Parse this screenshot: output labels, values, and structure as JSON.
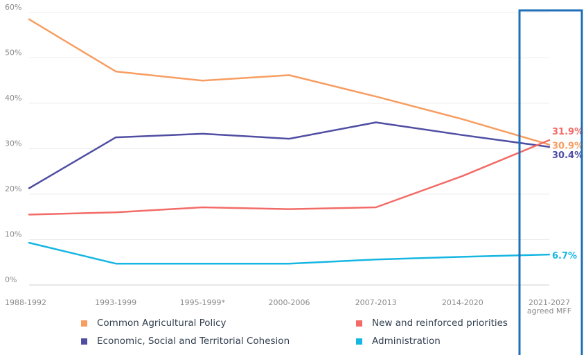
{
  "chart_data": {
    "type": "line",
    "categories": [
      "1988-1992",
      "1993-1999",
      "1995-1999*",
      "2000-2006",
      "2007-2013",
      "2014-2020",
      "2021-2027"
    ],
    "last_category_sublabel": "agreed MFF",
    "y_ticks": [
      "0%",
      "10%",
      "20%",
      "30%",
      "40%",
      "50%",
      "60%"
    ],
    "ylim": [
      0,
      60
    ],
    "grid": true,
    "legend_position": "bottom",
    "highlight_box": {
      "category": "2021-2027",
      "color": "#1e6fb8"
    },
    "series": [
      {
        "name": "Common Agricultural Policy",
        "color": "#f89d61",
        "values": [
          58.5,
          47.0,
          45.0,
          46.2,
          41.5,
          36.5,
          30.9
        ],
        "end_label": "30.9%"
      },
      {
        "name": "Economic, Social and Territorial Cohesion",
        "color": "#4f4ea3",
        "values": [
          21.3,
          32.5,
          33.3,
          32.2,
          35.8,
          33.0,
          30.4
        ],
        "end_label": "30.4%"
      },
      {
        "name": "New and reinforced priorities",
        "color": "#f26b67",
        "values": [
          15.5,
          16.0,
          17.1,
          16.7,
          17.1,
          24.0,
          31.9
        ],
        "end_label": "31.9%"
      },
      {
        "name": "Administration",
        "color": "#16b6e2",
        "values": [
          9.3,
          4.7,
          4.7,
          4.7,
          5.6,
          6.2,
          6.7
        ],
        "end_label": "6.7%"
      }
    ]
  }
}
